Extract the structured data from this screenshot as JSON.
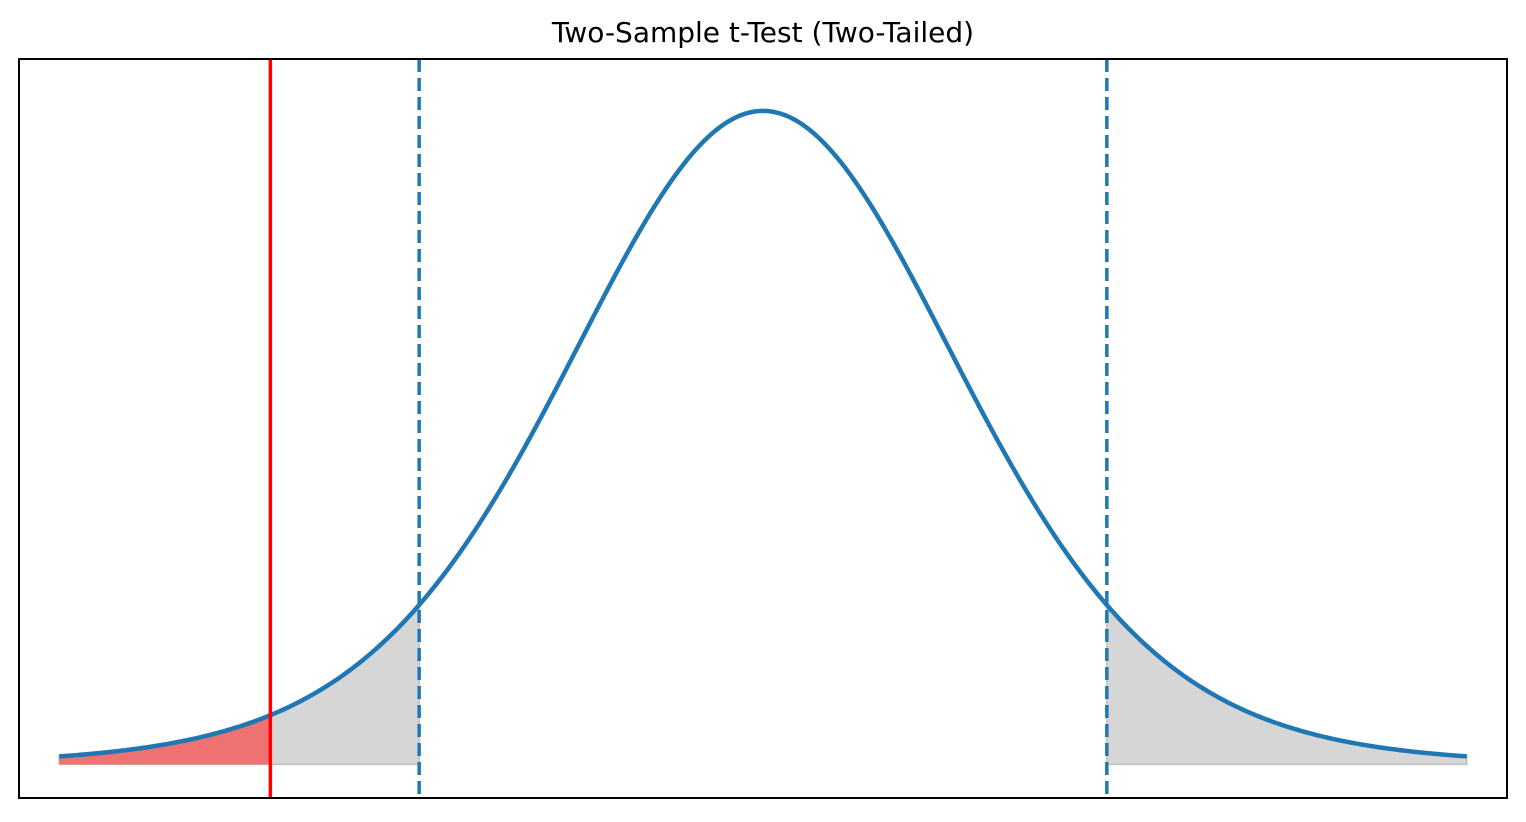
{
  "chart_data": {
    "type": "area",
    "title": "Two-Sample t-Test (Two-Tailed)",
    "xlabel": "",
    "ylabel": "",
    "xlim": [
      -3.7,
      3.7
    ],
    "ylim": [
      -0.02,
      0.42
    ],
    "axis_ticks_visible": false,
    "grid": false,
    "legend": "none",
    "distribution": "t",
    "curve_x_range": [
      -3.5,
      3.5
    ],
    "critical_values": [
      -1.71,
      1.71
    ],
    "test_statistic": -2.45,
    "colors": {
      "curve": "#1f77b4",
      "critical_lines": "#1f77b4",
      "test_statistic_line": "#ff0000",
      "rejection_region_fill": "#d6d6d6",
      "p_value_fill": "#f26060"
    }
  }
}
